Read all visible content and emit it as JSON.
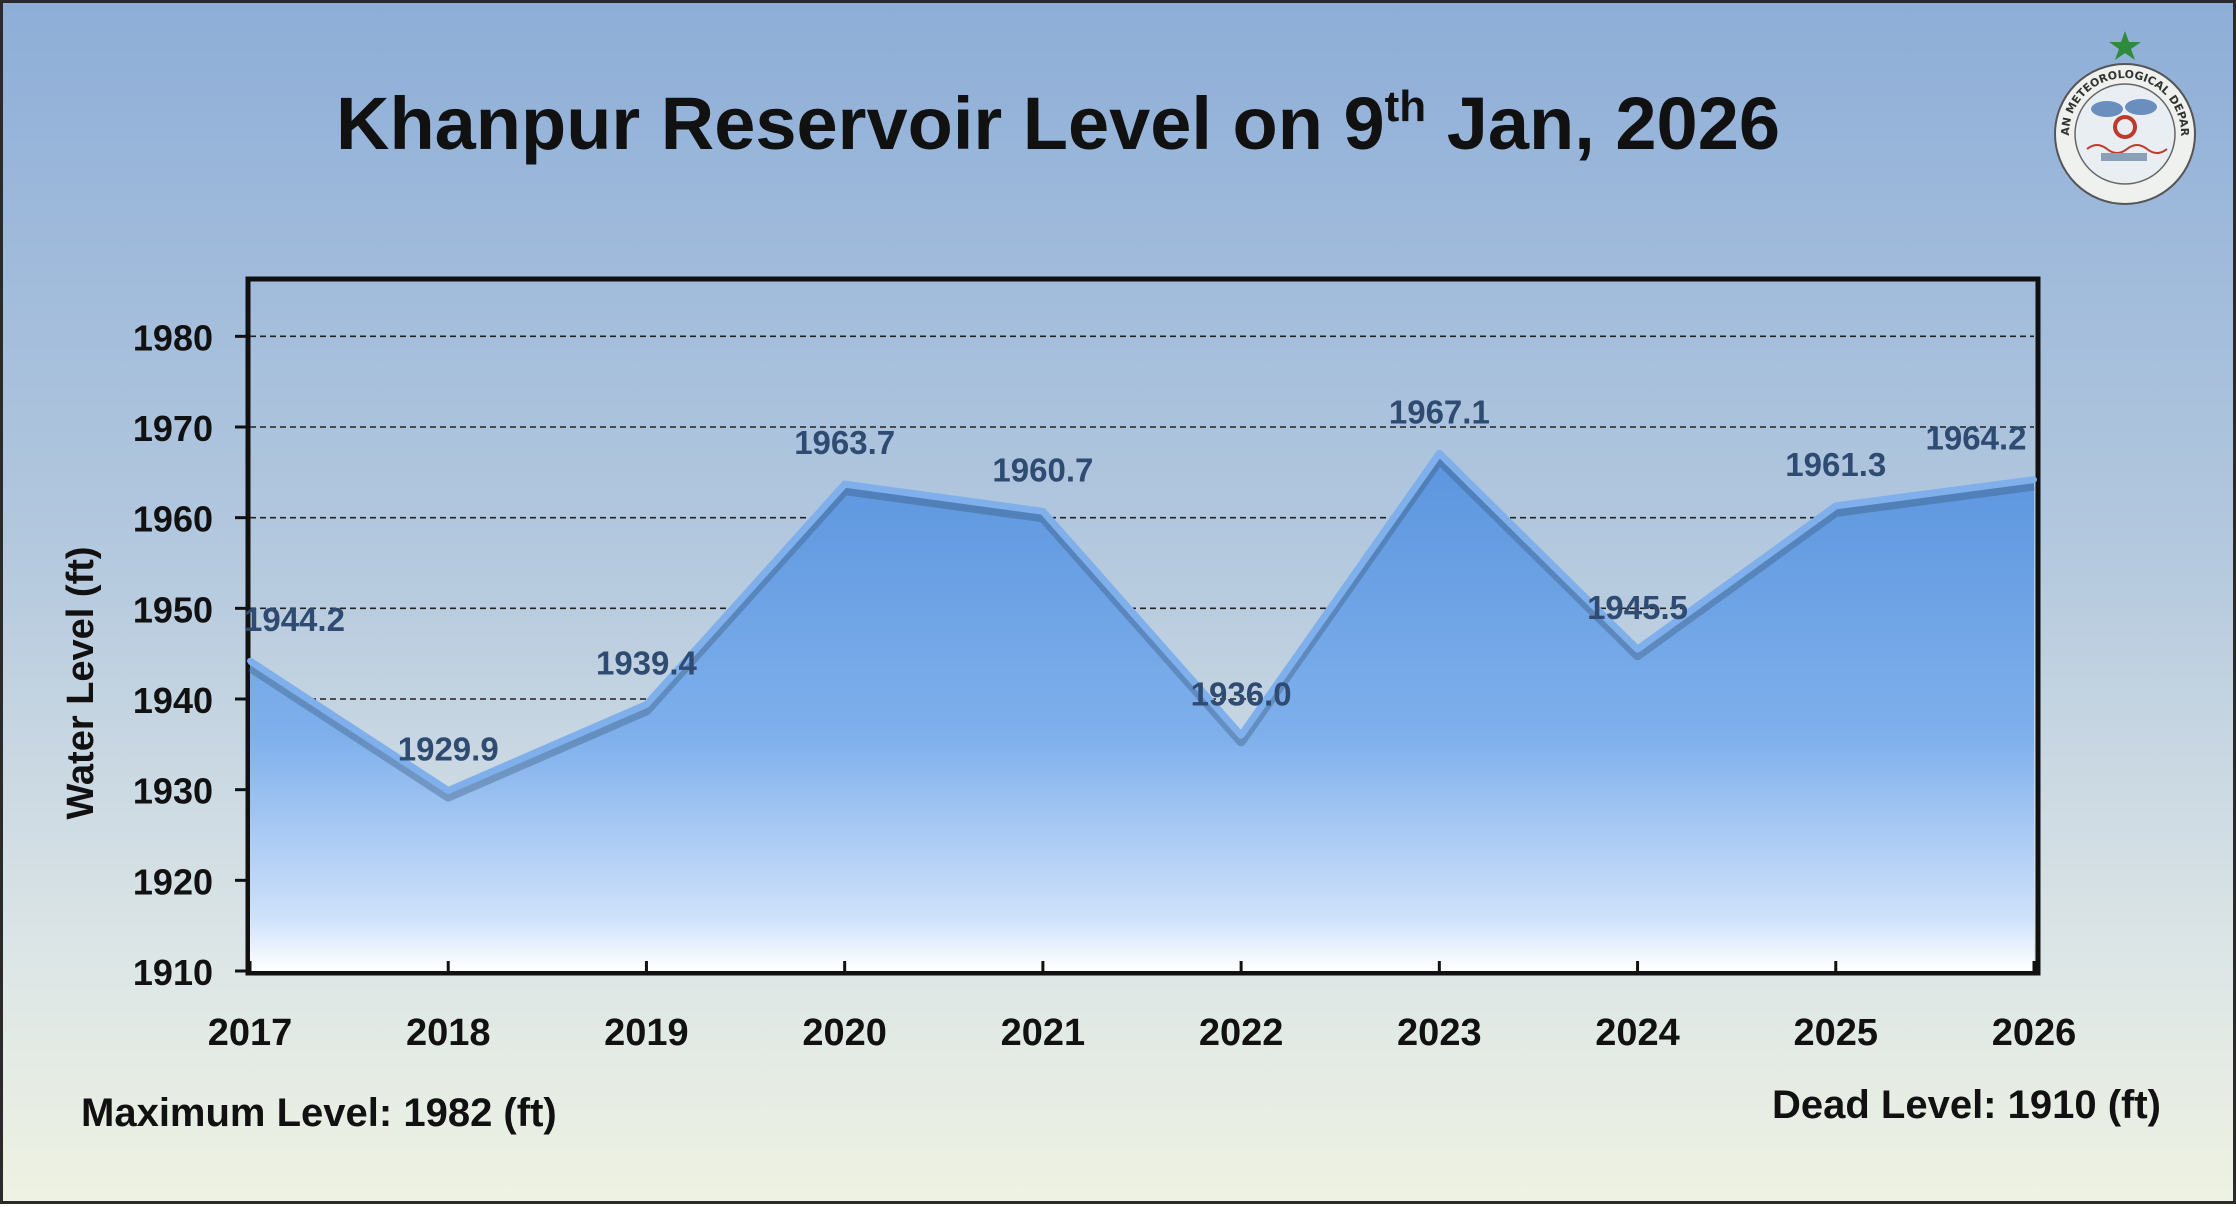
{
  "title": {
    "main": "Khanpur Reservoir Level on 9",
    "sup": "th",
    "tail": " Jan, 2026"
  },
  "footer": {
    "max_level": "Maximum Level: 1982 (ft)",
    "dead_level": "Dead Level: 1910 (ft)"
  },
  "logo": {
    "icon": "pakistan-meteorological-department-logo",
    "text": "PAKISTAN METEOROLOGICAL DEPARTMENT"
  },
  "colors": {
    "fill_top": "#5b95de",
    "fill_bottom": "#ffffff",
    "line": "#7fb0ec",
    "label": "#2f4b72",
    "grid": "#222222"
  },
  "chart_data": {
    "type": "area",
    "title": "Khanpur Reservoir Level on 9th Jan, 2026",
    "xlabel": "",
    "ylabel": "Water Level (ft)",
    "categories": [
      "2017",
      "2018",
      "2019",
      "2020",
      "2021",
      "2022",
      "2023",
      "2024",
      "2025",
      "2026"
    ],
    "values": [
      1944.2,
      1929.9,
      1939.4,
      1963.7,
      1960.7,
      1936.0,
      1967.1,
      1945.5,
      1961.3,
      1964.2
    ],
    "value_labels": [
      "1944.2",
      "1929.9",
      "1939.4",
      "1963.7",
      "1960.7",
      "1936.0",
      "1967.1",
      "1945.5",
      "1961.3",
      "1964.2"
    ],
    "ylim": [
      1910,
      1985
    ],
    "yticks": [
      "1910",
      "1920",
      "1930",
      "1940",
      "1950",
      "1960",
      "1970",
      "1980"
    ],
    "grid": true,
    "legend": "none"
  }
}
